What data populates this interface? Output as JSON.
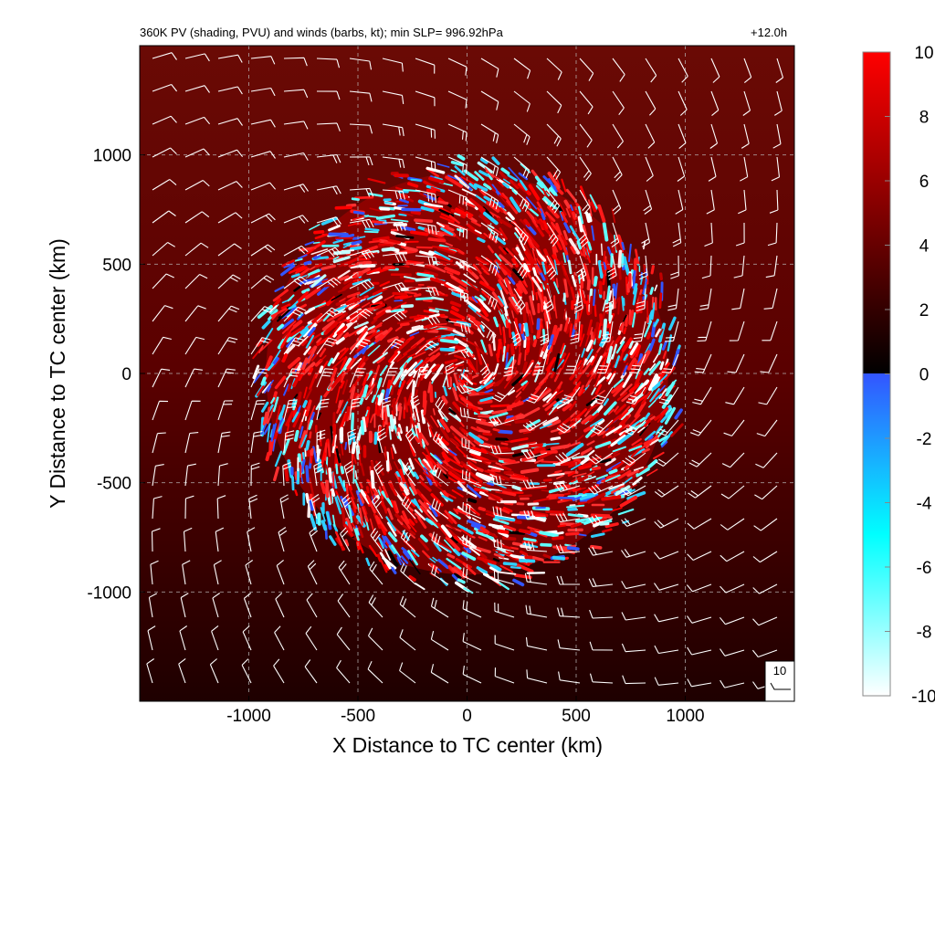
{
  "chart_data": {
    "type": "heatmap",
    "title": "360K PV (shading, PVU) and winds (barbs, kt); min SLP= 996.92hPa",
    "time_label": "+12.0h",
    "xlabel": "X Distance to TC center (km)",
    "ylabel": "Y Distance to TC center (km)",
    "xlim": [
      -1500,
      1500
    ],
    "ylim": [
      -1500,
      1500
    ],
    "x_ticks": [
      -1000,
      -500,
      0,
      500,
      1000
    ],
    "x_tick_labels": [
      "-1000",
      "-500",
      "0",
      "500",
      "1000"
    ],
    "y_ticks": [
      1000,
      500,
      0,
      -500,
      -1000
    ],
    "y_tick_labels": [
      "1000",
      "500",
      "0",
      "-500",
      "-1000"
    ],
    "grid": true,
    "field": "360K potential vorticity (PVU)",
    "disturbed_region_radius_km": 950,
    "background_pv_pvu": 4,
    "colorbar": {
      "min": -10,
      "max": 10,
      "ticks": [
        10,
        8,
        6,
        4,
        2,
        0,
        -2,
        -4,
        -6,
        -8,
        -10
      ],
      "tick_labels": [
        "10",
        "8",
        "6",
        "4",
        "2",
        "0",
        "-2",
        "-4",
        "-6",
        "-8",
        "-10"
      ],
      "stops": [
        {
          "value": 10,
          "color": "#ff0000"
        },
        {
          "value": 5,
          "color": "#800000"
        },
        {
          "value": 0.01,
          "color": "#000000"
        },
        {
          "value": 0,
          "color": "#3355ff"
        },
        {
          "value": -5,
          "color": "#00ffff"
        },
        {
          "value": -10,
          "color": "#ffffff"
        }
      ]
    },
    "wind_barbs": {
      "units": "kt",
      "flow": "cyclonic",
      "reference_label": "10",
      "reference_speed_kt": 10
    },
    "colors": {
      "background_field": "#5a0000",
      "positive_max": "#ff0000",
      "negative_min": "#ffffff",
      "negative_mid": "#00ffff",
      "barbs": "#ffffff",
      "grid": "#bbbbbb"
    }
  }
}
